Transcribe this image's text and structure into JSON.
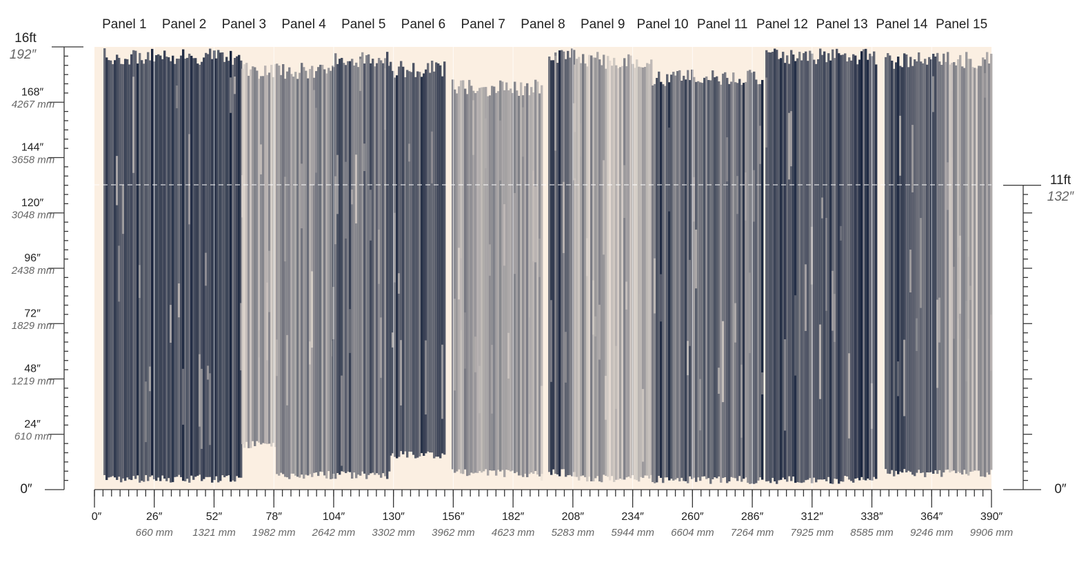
{
  "panels": [
    "Panel 1",
    "Panel 2",
    "Panel 3",
    "Panel 4",
    "Panel 5",
    "Panel 6",
    "Panel 7",
    "Panel 8",
    "Panel 9",
    "Panel 10",
    "Panel 11",
    "Panel 12",
    "Panel 13",
    "Panel 14",
    "Panel 15"
  ],
  "left_ruler": {
    "feet": "16ft",
    "inches": "192″",
    "zero": "0″",
    "marks": [
      {
        "inches": "168″",
        "mm": "4267 mm"
      },
      {
        "inches": "144″",
        "mm": "3658 mm"
      },
      {
        "inches": "120″",
        "mm": "3048 mm"
      },
      {
        "inches": "96″",
        "mm": "2438 mm"
      },
      {
        "inches": "72″",
        "mm": "1829 mm"
      },
      {
        "inches": "48″",
        "mm": "1219 mm"
      },
      {
        "inches": "24″",
        "mm": "610 mm"
      }
    ]
  },
  "right_ruler": {
    "feet": "11ft",
    "inches": "132″",
    "zero": "0″"
  },
  "bottom_ruler": {
    "zero": "0″",
    "marks": [
      {
        "inches": "26″",
        "mm": "660 mm"
      },
      {
        "inches": "52″",
        "mm": "1321 mm"
      },
      {
        "inches": "78″",
        "mm": "1982 mm"
      },
      {
        "inches": "104″",
        "mm": "2642 mm"
      },
      {
        "inches": "130″",
        "mm": "3302 mm"
      },
      {
        "inches": "156″",
        "mm": "3962 mm"
      },
      {
        "inches": "182″",
        "mm": "4623 mm"
      },
      {
        "inches": "208″",
        "mm": "5283 mm"
      },
      {
        "inches": "234″",
        "mm": "5944 mm"
      },
      {
        "inches": "260″",
        "mm": "6604 mm"
      },
      {
        "inches": "286″",
        "mm": "7264 mm"
      },
      {
        "inches": "312″",
        "mm": "7925 mm"
      },
      {
        "inches": "338″",
        "mm": "8585 mm"
      },
      {
        "inches": "364″",
        "mm": "9246 mm"
      },
      {
        "inches": "390″",
        "mm": "9906 mm"
      }
    ]
  }
}
